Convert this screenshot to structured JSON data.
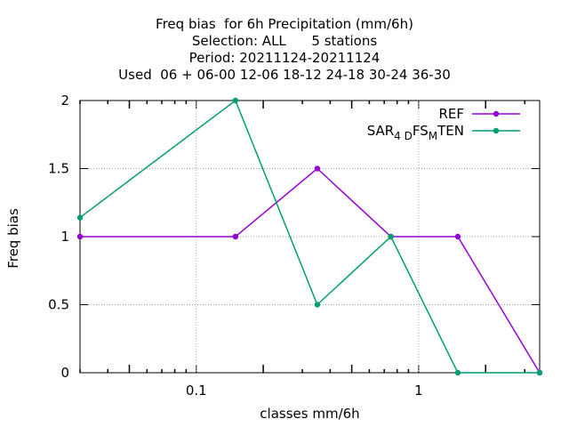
{
  "chart_data": {
    "type": "line",
    "title_lines": [
      "Freq bias  for 6h Precipitation (mm/6h)",
      "Selection: ALL      5 stations",
      "Period: 20211124-20211124",
      "Used  06 + 06-00 12-06 18-12 24-18 30-24 36-30"
    ],
    "xlabel": "classes mm/6h",
    "ylabel": "Freq bias",
    "x_scale": "log",
    "xlim": [
      0.03,
      3.5
    ],
    "ylim": [
      0,
      2
    ],
    "x_ticks": [
      0.1,
      1
    ],
    "x_tick_labels": [
      "0.1",
      "1"
    ],
    "y_ticks": [
      0,
      0.5,
      1,
      1.5,
      2
    ],
    "y_tick_labels": [
      "0",
      "0.5",
      "1",
      "1.5",
      "2"
    ],
    "grid": true,
    "legend_position": "top-right",
    "series": [
      {
        "name": "REF",
        "color": "#9400d3",
        "x": [
          0.03,
          0.15,
          0.35,
          0.75,
          1.5,
          3.5
        ],
        "values": [
          1.0,
          1.0,
          1.5,
          1.0,
          1.0,
          0.0
        ]
      },
      {
        "name": "SAR4DFSMTEN",
        "name_parts": [
          "SAR",
          "4 D",
          "FS",
          "M",
          "TEN"
        ],
        "color": "#009e73",
        "x": [
          0.03,
          0.15,
          0.35,
          0.75,
          1.5,
          3.5
        ],
        "values": [
          1.14,
          2.0,
          0.5,
          1.0,
          0.0,
          0.0
        ]
      }
    ]
  }
}
